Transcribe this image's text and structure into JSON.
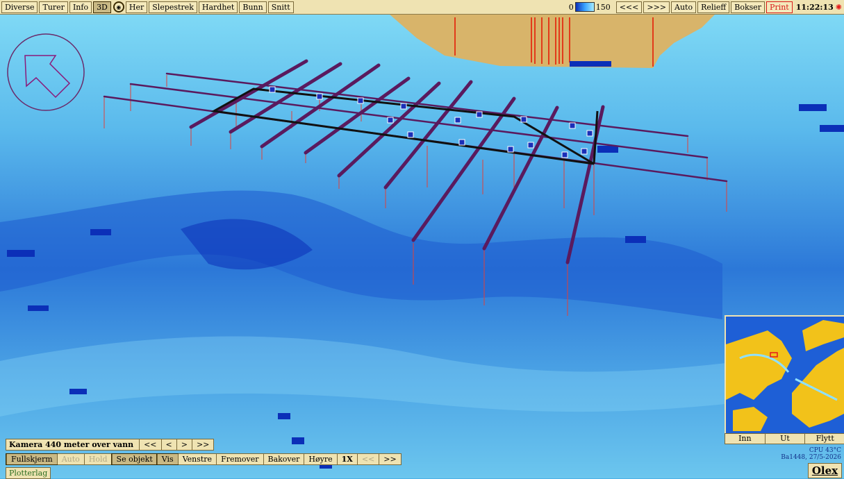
{
  "menu": [
    {
      "label": "Diverse",
      "active": false
    },
    {
      "label": "Turer",
      "active": false
    },
    {
      "label": "Info",
      "active": false
    },
    {
      "label": "3D",
      "active": true
    },
    {
      "label": "Her",
      "active": false
    },
    {
      "label": "Slepestrek",
      "active": false
    },
    {
      "label": "Hardhet",
      "active": false
    },
    {
      "label": "Bunn",
      "active": false
    },
    {
      "label": "Snitt",
      "active": false
    }
  ],
  "depth_scale": {
    "min": "0",
    "max": "150"
  },
  "right_menu": {
    "prev": "<<<",
    "next": ">>>",
    "auto": "Auto",
    "relief": "Relieff",
    "boxes": "Bokser",
    "print": "Print",
    "clock": "11:22:13"
  },
  "camera": {
    "label": "Kamera 440 meter over vann",
    "buttons": [
      "<<",
      "<",
      ">",
      ">>"
    ]
  },
  "controls": [
    {
      "label": "Fullskjerm",
      "state": "active"
    },
    {
      "label": "Auto",
      "state": "disabled"
    },
    {
      "label": "Hold",
      "state": "disabled"
    },
    {
      "label": "Se objekt",
      "state": "active"
    },
    {
      "label": "Vis",
      "state": "active"
    },
    {
      "label": "Venstre",
      "state": "normal"
    },
    {
      "label": "Fremover",
      "state": "normal"
    },
    {
      "label": "Bakover",
      "state": "normal"
    },
    {
      "label": "Høyre",
      "state": "normal"
    },
    {
      "label": "1X",
      "state": "speed"
    },
    {
      "label": "<<",
      "state": "disabled"
    },
    {
      "label": ">>",
      "state": "normal"
    }
  ],
  "plotter_label": "Plotterlag",
  "minimap": {
    "buttons": [
      "Inn",
      "Ut",
      "Flytt"
    ]
  },
  "status": {
    "cpu": "CPU 43°C",
    "build": "Ba1448, 27/5-2026"
  },
  "logo": "Olex",
  "colors": {
    "bar_bg": "#efe3b2",
    "sea_light": "#7fd6f5",
    "sea_dark": "#0b2fb8",
    "land": "#d8b46a",
    "trawl_line": "#5a1a5e"
  }
}
